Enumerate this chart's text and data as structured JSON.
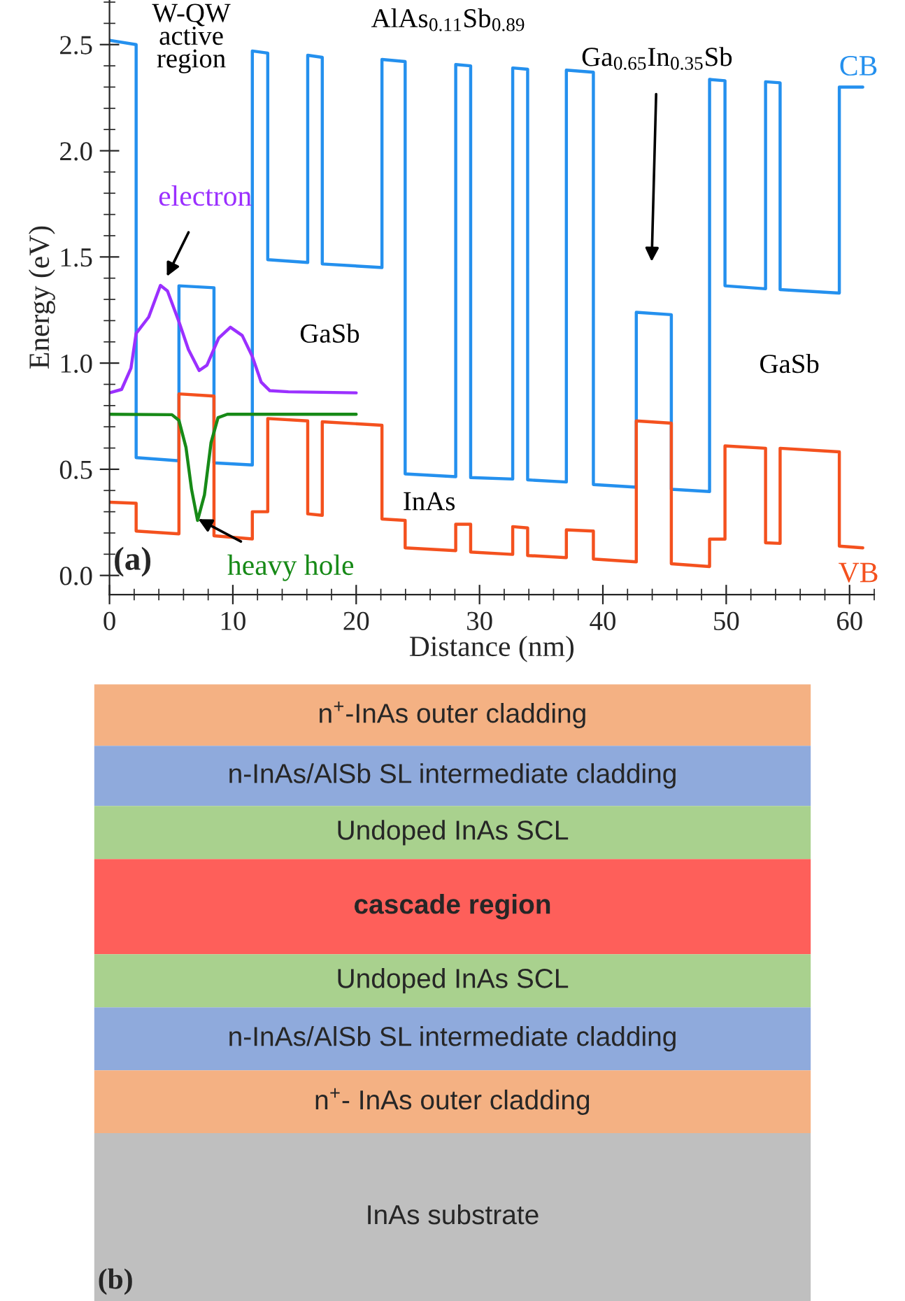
{
  "chart_data": [
    {
      "type": "line",
      "xlabel": "Distance (nm)",
      "ylabel": "Energy (eV)",
      "xlim": [
        0,
        62
      ],
      "ylim": [
        -0.09,
        2.71
      ],
      "xticks": [
        0,
        10,
        20,
        30,
        40,
        50,
        60
      ],
      "yticks": [
        {
          "value": 0,
          "label": "0.0"
        },
        0.5,
        {
          "value": 1,
          "label": "1.0"
        },
        1.5,
        {
          "value": 2,
          "label": "2.0"
        },
        2.5
      ],
      "grid": false,
      "legend": false,
      "marker": "none",
      "line_style": "solid",
      "series": [
        {
          "name": "CB",
          "color": "#2490ee",
          "x": [
            0,
            2.16,
            2.16,
            5.63,
            5.63,
            8.47,
            8.47,
            11.58,
            11.58,
            12.83,
            12.83,
            16.07,
            16.07,
            17.25,
            17.25,
            22.09,
            22.09,
            23.97,
            23.97,
            28.07,
            28.07,
            29.28,
            29.28,
            32.69,
            32.69,
            33.9,
            33.9,
            37.04,
            37.04,
            39.23,
            39.23,
            42.71,
            42.71,
            45.55,
            45.55,
            48.65,
            48.65,
            49.9,
            49.9,
            53.19,
            53.19,
            54.37,
            54.37,
            59.17,
            59.17,
            61.07
          ],
          "values": [
            2.52,
            2.5,
            0.555,
            0.54,
            1.364,
            1.355,
            0.53,
            0.52,
            2.47,
            2.46,
            1.487,
            1.474,
            2.45,
            2.44,
            1.467,
            1.45,
            2.43,
            2.42,
            0.478,
            0.465,
            2.406,
            2.4,
            0.461,
            0.454,
            2.39,
            2.384,
            0.45,
            0.44,
            2.38,
            2.37,
            0.428,
            0.416,
            1.239,
            1.228,
            0.406,
            0.395,
            2.336,
            2.33,
            1.364,
            1.35,
            2.325,
            2.32,
            1.346,
            1.33,
            2.3,
            2.3
          ]
        },
        {
          "name": "VB",
          "color": "#f4511e",
          "x": [
            0,
            2.16,
            2.16,
            5.63,
            5.63,
            8.47,
            8.47,
            11.58,
            11.58,
            12.83,
            12.83,
            16.07,
            16.07,
            17.25,
            17.25,
            22.09,
            22.09,
            23.97,
            23.97,
            28.07,
            28.07,
            29.28,
            29.28,
            32.69,
            32.69,
            33.9,
            33.9,
            37.04,
            37.04,
            39.23,
            39.23,
            42.71,
            42.71,
            45.55,
            45.55,
            48.65,
            48.65,
            49.9,
            49.9,
            53.19,
            53.19,
            54.37,
            54.37,
            59.17,
            59.17,
            61.07
          ],
          "values": [
            0.345,
            0.34,
            0.209,
            0.196,
            0.855,
            0.845,
            0.187,
            0.172,
            0.3,
            0.3,
            0.739,
            0.728,
            0.29,
            0.283,
            0.724,
            0.707,
            0.266,
            0.259,
            0.13,
            0.117,
            0.241,
            0.241,
            0.11,
            0.099,
            0.23,
            0.224,
            0.094,
            0.084,
            0.215,
            0.209,
            0.077,
            0.064,
            0.728,
            0.717,
            0.055,
            0.042,
            0.171,
            0.171,
            0.61,
            0.599,
            0.154,
            0.151,
            0.599,
            0.582,
            0.138,
            0.13
          ]
        },
        {
          "color": "#9b30ff",
          "x": [
            0,
            0.98,
            1.74,
            2.16,
            3.18,
            4.13,
            4.7,
            5.63,
            6.4,
            7.27,
            7.9,
            8.85,
            9.8,
            10.76,
            11.58,
            12.3,
            13.0,
            14.5,
            20.0
          ],
          "values": [
            0.86,
            0.876,
            0.976,
            1.14,
            1.217,
            1.366,
            1.34,
            1.195,
            1.064,
            0.965,
            0.99,
            1.118,
            1.169,
            1.13,
            1.031,
            0.91,
            0.87,
            0.865,
            0.86
          ]
        },
        {
          "color": "#178a17",
          "x": [
            0,
            5.06,
            5.63,
            6.2,
            6.65,
            7.14,
            7.7,
            8.23,
            8.8,
            9.55,
            20.0
          ],
          "values": [
            0.759,
            0.757,
            0.73,
            0.603,
            0.406,
            0.259,
            0.38,
            0.625,
            0.743,
            0.759,
            0.759
          ]
        }
      ],
      "annotations": [
        "W-QW\nactive\nregion",
        "AlAs$_{0.11}$Sb$_{0.89}$",
        "Ga$_{0.65}$In$_{0.35}$Sb",
        "electron",
        "heavy hole",
        "GaSb",
        "GaSb",
        "InAs",
        "(a)"
      ]
    },
    {
      "type": "other",
      "categories": [
        "n$^{+}$-InAs outer cladding",
        "n-InAs/AlSb SL intermediate cladding",
        "Undoped InAs SCL",
        "cascade region",
        "Undoped InAs SCL",
        "n-InAs/AlSb SL intermediate cladding",
        "n$^{+}$- InAs outer cladding",
        "InAs substrate"
      ],
      "colors": [
        "#f4b183",
        "#8faadc",
        "#a9d18e",
        "#fe5f5a",
        "#a9d18e",
        "#8faadc",
        "#f4b183",
        "#bfbfbf"
      ],
      "annotations": [
        "(b)"
      ]
    }
  ]
}
